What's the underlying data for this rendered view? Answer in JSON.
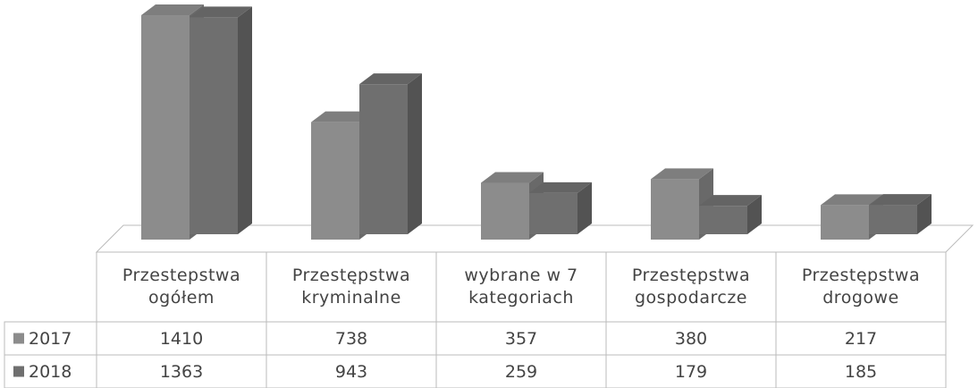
{
  "chart_data": {
    "type": "bar",
    "categories": [
      "Przestepstwa ogółem",
      "Przestępstwa kryminalne",
      "wybrane w 7 kategoriach",
      "Przestępstwa gospodarcze",
      "Przestępstwa drogowe"
    ],
    "series": [
      {
        "name": "2017",
        "color": "#8c8c8c",
        "values": [
          1410,
          738,
          357,
          380,
          217
        ]
      },
      {
        "name": "2018",
        "color": "#6f6f6f",
        "values": [
          1363,
          943,
          259,
          179,
          185
        ]
      }
    ]
  }
}
